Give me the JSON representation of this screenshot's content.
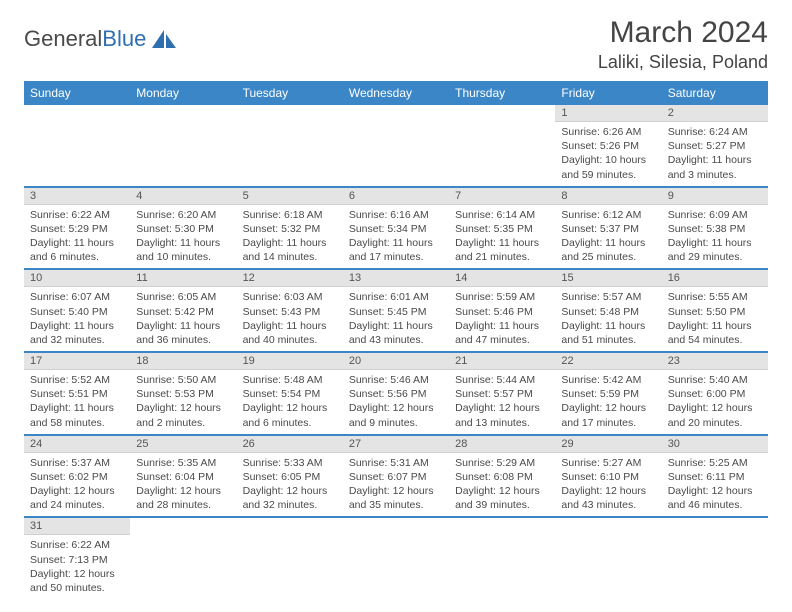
{
  "logo": {
    "text1": "General",
    "text2": "Blue",
    "sail_color": "#2f6fb0"
  },
  "header": {
    "title": "March 2024",
    "location": "Laliki, Silesia, Poland"
  },
  "calendar": {
    "type": "table",
    "columns": [
      "Sunday",
      "Monday",
      "Tuesday",
      "Wednesday",
      "Thursday",
      "Friday",
      "Saturday"
    ],
    "header_bg": "#3b86c6",
    "header_fg": "#ffffff",
    "row_divider_color": "#3b86c6",
    "daynum_bg": "#e4e4e4",
    "text_color": "#4a4a4a",
    "weeks": [
      [
        null,
        null,
        null,
        null,
        null,
        {
          "n": "1",
          "sunrise": "Sunrise: 6:26 AM",
          "sunset": "Sunset: 5:26 PM",
          "daylight": "Daylight: 10 hours and 59 minutes."
        },
        {
          "n": "2",
          "sunrise": "Sunrise: 6:24 AM",
          "sunset": "Sunset: 5:27 PM",
          "daylight": "Daylight: 11 hours and 3 minutes."
        }
      ],
      [
        {
          "n": "3",
          "sunrise": "Sunrise: 6:22 AM",
          "sunset": "Sunset: 5:29 PM",
          "daylight": "Daylight: 11 hours and 6 minutes."
        },
        {
          "n": "4",
          "sunrise": "Sunrise: 6:20 AM",
          "sunset": "Sunset: 5:30 PM",
          "daylight": "Daylight: 11 hours and 10 minutes."
        },
        {
          "n": "5",
          "sunrise": "Sunrise: 6:18 AM",
          "sunset": "Sunset: 5:32 PM",
          "daylight": "Daylight: 11 hours and 14 minutes."
        },
        {
          "n": "6",
          "sunrise": "Sunrise: 6:16 AM",
          "sunset": "Sunset: 5:34 PM",
          "daylight": "Daylight: 11 hours and 17 minutes."
        },
        {
          "n": "7",
          "sunrise": "Sunrise: 6:14 AM",
          "sunset": "Sunset: 5:35 PM",
          "daylight": "Daylight: 11 hours and 21 minutes."
        },
        {
          "n": "8",
          "sunrise": "Sunrise: 6:12 AM",
          "sunset": "Sunset: 5:37 PM",
          "daylight": "Daylight: 11 hours and 25 minutes."
        },
        {
          "n": "9",
          "sunrise": "Sunrise: 6:09 AM",
          "sunset": "Sunset: 5:38 PM",
          "daylight": "Daylight: 11 hours and 29 minutes."
        }
      ],
      [
        {
          "n": "10",
          "sunrise": "Sunrise: 6:07 AM",
          "sunset": "Sunset: 5:40 PM",
          "daylight": "Daylight: 11 hours and 32 minutes."
        },
        {
          "n": "11",
          "sunrise": "Sunrise: 6:05 AM",
          "sunset": "Sunset: 5:42 PM",
          "daylight": "Daylight: 11 hours and 36 minutes."
        },
        {
          "n": "12",
          "sunrise": "Sunrise: 6:03 AM",
          "sunset": "Sunset: 5:43 PM",
          "daylight": "Daylight: 11 hours and 40 minutes."
        },
        {
          "n": "13",
          "sunrise": "Sunrise: 6:01 AM",
          "sunset": "Sunset: 5:45 PM",
          "daylight": "Daylight: 11 hours and 43 minutes."
        },
        {
          "n": "14",
          "sunrise": "Sunrise: 5:59 AM",
          "sunset": "Sunset: 5:46 PM",
          "daylight": "Daylight: 11 hours and 47 minutes."
        },
        {
          "n": "15",
          "sunrise": "Sunrise: 5:57 AM",
          "sunset": "Sunset: 5:48 PM",
          "daylight": "Daylight: 11 hours and 51 minutes."
        },
        {
          "n": "16",
          "sunrise": "Sunrise: 5:55 AM",
          "sunset": "Sunset: 5:50 PM",
          "daylight": "Daylight: 11 hours and 54 minutes."
        }
      ],
      [
        {
          "n": "17",
          "sunrise": "Sunrise: 5:52 AM",
          "sunset": "Sunset: 5:51 PM",
          "daylight": "Daylight: 11 hours and 58 minutes."
        },
        {
          "n": "18",
          "sunrise": "Sunrise: 5:50 AM",
          "sunset": "Sunset: 5:53 PM",
          "daylight": "Daylight: 12 hours and 2 minutes."
        },
        {
          "n": "19",
          "sunrise": "Sunrise: 5:48 AM",
          "sunset": "Sunset: 5:54 PM",
          "daylight": "Daylight: 12 hours and 6 minutes."
        },
        {
          "n": "20",
          "sunrise": "Sunrise: 5:46 AM",
          "sunset": "Sunset: 5:56 PM",
          "daylight": "Daylight: 12 hours and 9 minutes."
        },
        {
          "n": "21",
          "sunrise": "Sunrise: 5:44 AM",
          "sunset": "Sunset: 5:57 PM",
          "daylight": "Daylight: 12 hours and 13 minutes."
        },
        {
          "n": "22",
          "sunrise": "Sunrise: 5:42 AM",
          "sunset": "Sunset: 5:59 PM",
          "daylight": "Daylight: 12 hours and 17 minutes."
        },
        {
          "n": "23",
          "sunrise": "Sunrise: 5:40 AM",
          "sunset": "Sunset: 6:00 PM",
          "daylight": "Daylight: 12 hours and 20 minutes."
        }
      ],
      [
        {
          "n": "24",
          "sunrise": "Sunrise: 5:37 AM",
          "sunset": "Sunset: 6:02 PM",
          "daylight": "Daylight: 12 hours and 24 minutes."
        },
        {
          "n": "25",
          "sunrise": "Sunrise: 5:35 AM",
          "sunset": "Sunset: 6:04 PM",
          "daylight": "Daylight: 12 hours and 28 minutes."
        },
        {
          "n": "26",
          "sunrise": "Sunrise: 5:33 AM",
          "sunset": "Sunset: 6:05 PM",
          "daylight": "Daylight: 12 hours and 32 minutes."
        },
        {
          "n": "27",
          "sunrise": "Sunrise: 5:31 AM",
          "sunset": "Sunset: 6:07 PM",
          "daylight": "Daylight: 12 hours and 35 minutes."
        },
        {
          "n": "28",
          "sunrise": "Sunrise: 5:29 AM",
          "sunset": "Sunset: 6:08 PM",
          "daylight": "Daylight: 12 hours and 39 minutes."
        },
        {
          "n": "29",
          "sunrise": "Sunrise: 5:27 AM",
          "sunset": "Sunset: 6:10 PM",
          "daylight": "Daylight: 12 hours and 43 minutes."
        },
        {
          "n": "30",
          "sunrise": "Sunrise: 5:25 AM",
          "sunset": "Sunset: 6:11 PM",
          "daylight": "Daylight: 12 hours and 46 minutes."
        }
      ],
      [
        {
          "n": "31",
          "sunrise": "Sunrise: 6:22 AM",
          "sunset": "Sunset: 7:13 PM",
          "daylight": "Daylight: 12 hours and 50 minutes."
        },
        null,
        null,
        null,
        null,
        null,
        null
      ]
    ]
  }
}
